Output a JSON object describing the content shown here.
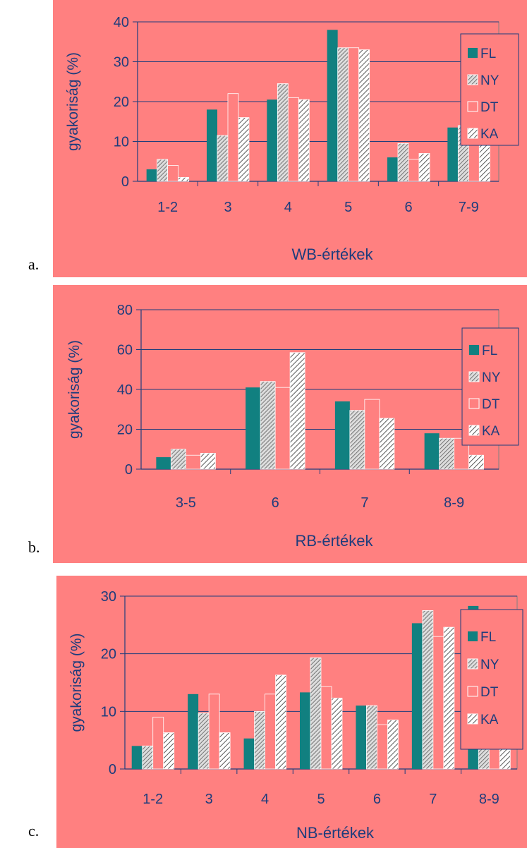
{
  "colors": {
    "background": "#ff8080",
    "text": "#1e3c7c",
    "axis": "#1e3c7c",
    "plot_border": "#808080",
    "FL": "#118080",
    "NY_stroke": "#5a5a5a",
    "DT_fill": "#ff8080",
    "KA_stroke": "#5a5a5a"
  },
  "chart_data": [
    {
      "panel_label": "a.",
      "type": "bar",
      "title": "",
      "xlabel": "WB-értékek",
      "ylabel": "gyakoriság (%)",
      "ylim": [
        0,
        40
      ],
      "yticks": [
        "0",
        "10",
        "20",
        "30",
        "40"
      ],
      "grid": true,
      "legend_position": "right",
      "categories": [
        "1-2",
        "3",
        "4",
        "5",
        "6",
        "7-9"
      ],
      "series": [
        {
          "name": "FL",
          "pattern": "solid",
          "values": [
            3,
            18,
            20.5,
            38,
            6,
            13.5
          ]
        },
        {
          "name": "NY",
          "pattern": "dense-hatch",
          "values": [
            5.5,
            11.5,
            24.5,
            33.5,
            9.5,
            14
          ]
        },
        {
          "name": "DT",
          "pattern": "empty",
          "values": [
            4,
            22,
            21,
            33.5,
            5.5,
            12.5
          ]
        },
        {
          "name": "KA",
          "pattern": "wide-hatch",
          "values": [
            1,
            16,
            20.5,
            33,
            7,
            20.5
          ]
        }
      ]
    },
    {
      "panel_label": "b.",
      "type": "bar",
      "title": "",
      "xlabel": "RB-értékek",
      "ylabel": "gyakoriság (%)",
      "ylim": [
        0,
        80
      ],
      "yticks": [
        "0",
        "20",
        "40",
        "60",
        "80"
      ],
      "grid": true,
      "legend_position": "right",
      "categories": [
        "3-5",
        "6",
        "7",
        "8-9"
      ],
      "series": [
        {
          "name": "FL",
          "pattern": "solid",
          "values": [
            6,
            41,
            34,
            18
          ]
        },
        {
          "name": "NY",
          "pattern": "dense-hatch",
          "values": [
            10,
            44,
            29.5,
            15.5
          ]
        },
        {
          "name": "DT",
          "pattern": "empty",
          "values": [
            7,
            41,
            35,
            15.5
          ]
        },
        {
          "name": "KA",
          "pattern": "wide-hatch",
          "values": [
            8,
            58.5,
            25.5,
            7
          ]
        }
      ]
    },
    {
      "panel_label": "c.",
      "type": "bar",
      "title": "",
      "xlabel": "NB-értékek",
      "ylabel": "gyakoriság (%)",
      "ylim": [
        0,
        30
      ],
      "yticks": [
        "0",
        "10",
        "20",
        "30"
      ],
      "grid": true,
      "legend_position": "right",
      "categories": [
        "1-2",
        "3",
        "4",
        "5",
        "6",
        "7",
        "8-9"
      ],
      "series": [
        {
          "name": "FL",
          "pattern": "solid",
          "values": [
            4,
            13,
            5.3,
            13.3,
            11,
            25.3,
            28.3
          ]
        },
        {
          "name": "NY",
          "pattern": "dense-hatch",
          "values": [
            4,
            9.7,
            10,
            19.3,
            11,
            27.5,
            17.7
          ]
        },
        {
          "name": "DT",
          "pattern": "empty",
          "values": [
            9,
            13,
            13,
            14.3,
            7.7,
            23,
            20.3
          ]
        },
        {
          "name": "KA",
          "pattern": "wide-hatch",
          "values": [
            6.3,
            6.3,
            16.3,
            12.3,
            8.5,
            24.6,
            26
          ]
        }
      ]
    }
  ]
}
